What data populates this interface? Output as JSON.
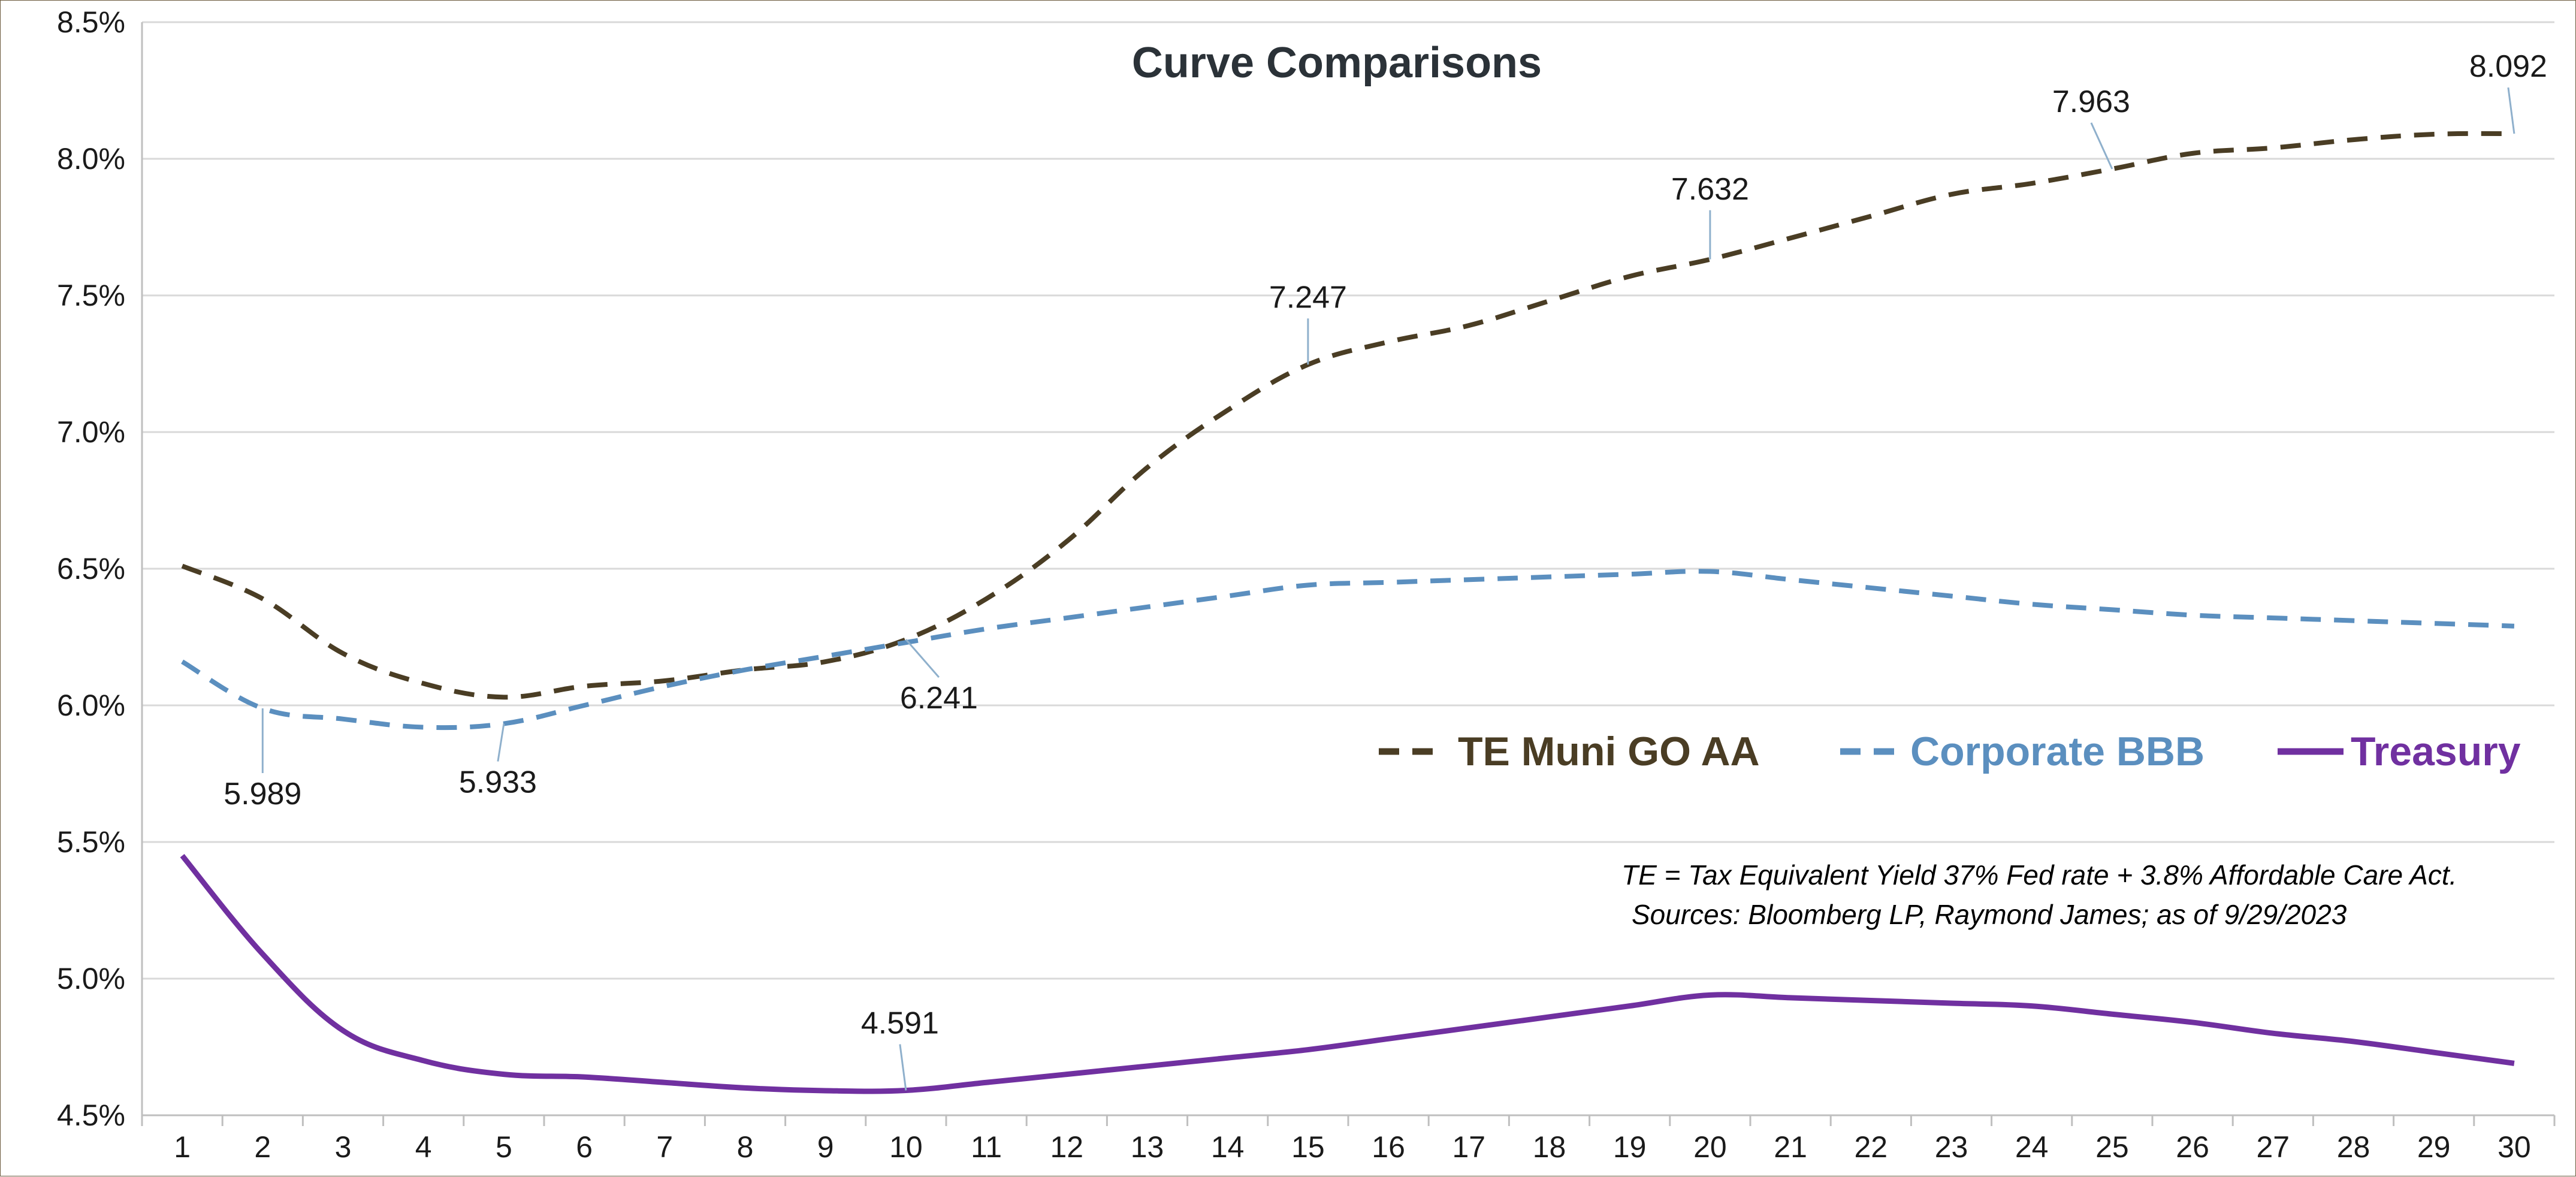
{
  "chart_data": {
    "type": "line",
    "title": "Curve Comparisons",
    "x": [
      1,
      2,
      3,
      4,
      5,
      6,
      7,
      8,
      9,
      10,
      11,
      12,
      13,
      14,
      15,
      16,
      17,
      18,
      19,
      20,
      21,
      22,
      23,
      24,
      25,
      26,
      27,
      28,
      29,
      30
    ],
    "ylim": [
      4.5,
      8.5
    ],
    "y_ticks": [
      4.5,
      5.0,
      5.5,
      6.0,
      6.5,
      7.0,
      7.5,
      8.0,
      8.5
    ],
    "y_tick_labels": [
      "4.5%",
      "5.0%",
      "5.5%",
      "6.0%",
      "6.5%",
      "7.0%",
      "7.5%",
      "8.0%",
      "8.5%"
    ],
    "grid": "horizontal",
    "legend_position": "middle-right",
    "series": [
      {
        "name": "TE Muni GO AA",
        "style": "dashed",
        "color": "#4a3d24",
        "values": [
          6.51,
          6.39,
          6.19,
          6.08,
          6.03,
          6.07,
          6.09,
          6.13,
          6.16,
          6.241,
          6.39,
          6.6,
          6.87,
          7.08,
          7.247,
          7.33,
          7.39,
          7.48,
          7.57,
          7.632,
          7.71,
          7.79,
          7.87,
          7.91,
          7.963,
          8.02,
          8.04,
          8.07,
          8.09,
          8.092
        ],
        "labels": [
          {
            "x": 10,
            "text": "6.241"
          },
          {
            "x": 15,
            "text": "7.247"
          },
          {
            "x": 20,
            "text": "7.632"
          },
          {
            "x": 25,
            "text": "7.963"
          },
          {
            "x": 30,
            "text": "8.092"
          }
        ]
      },
      {
        "name": "Corporate BBB",
        "style": "dashed",
        "color": "#5b8fbf",
        "values": [
          6.16,
          5.989,
          5.95,
          5.92,
          5.933,
          6.0,
          6.07,
          6.13,
          6.18,
          6.23,
          6.28,
          6.32,
          6.36,
          6.4,
          6.44,
          6.45,
          6.46,
          6.47,
          6.48,
          6.49,
          6.46,
          6.43,
          6.4,
          6.37,
          6.35,
          6.33,
          6.32,
          6.31,
          6.3,
          6.29
        ],
        "labels": [
          {
            "x": 2,
            "text": "5.989"
          },
          {
            "x": 5,
            "text": "5.933"
          }
        ]
      },
      {
        "name": "Treasury",
        "style": "solid",
        "color": "#7030a0",
        "values": [
          5.45,
          5.09,
          4.81,
          4.7,
          4.65,
          4.64,
          4.62,
          4.6,
          4.59,
          4.591,
          4.62,
          4.65,
          4.68,
          4.71,
          4.74,
          4.78,
          4.82,
          4.86,
          4.9,
          4.94,
          4.93,
          4.92,
          4.91,
          4.9,
          4.87,
          4.84,
          4.8,
          4.77,
          4.73,
          4.69
        ],
        "labels": [
          {
            "x": 10,
            "text": "4.591"
          }
        ]
      }
    ],
    "notes": [
      "TE = Tax Equivalent Yield 37%  Fed rate + 3.8% Affordable Care Act.",
      "Sources: Bloomberg LP, Raymond James; as of  9/29/2023"
    ]
  }
}
